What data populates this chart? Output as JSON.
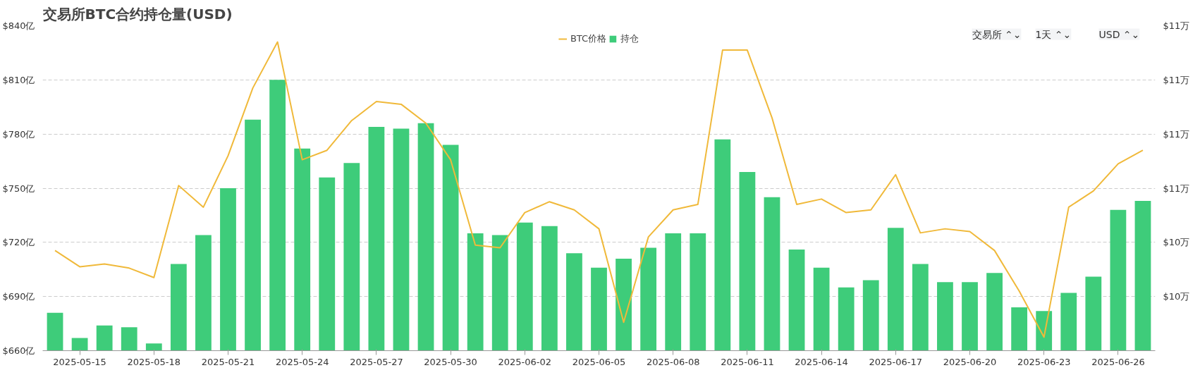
{
  "chart_data": {
    "type": "bar",
    "title": "交易所BTC合约持仓量(USD)",
    "annotations": [
      "交易所 ⌃⌄",
      "1天 ⌃⌄",
      "USD ⌃⌄"
    ],
    "x": [
      "2025-05-14",
      "2025-05-15",
      "2025-05-16",
      "2025-05-17",
      "2025-05-18",
      "2025-05-19",
      "2025-05-20",
      "2025-05-21",
      "2025-05-22",
      "2025-05-23",
      "2025-05-24",
      "2025-05-25",
      "2025-05-26",
      "2025-05-27",
      "2025-05-28",
      "2025-05-29",
      "2025-05-30",
      "2025-05-31",
      "2025-06-01",
      "2025-06-02",
      "2025-06-03",
      "2025-06-04",
      "2025-06-05",
      "2025-06-06",
      "2025-06-07",
      "2025-06-08",
      "2025-06-09",
      "2025-06-10",
      "2025-06-11",
      "2025-06-12",
      "2025-06-13",
      "2025-06-14",
      "2025-06-15",
      "2025-06-16",
      "2025-06-17",
      "2025-06-18",
      "2025-06-19",
      "2025-06-20",
      "2025-06-21",
      "2025-06-22",
      "2025-06-23",
      "2025-06-24",
      "2025-06-25",
      "2025-06-26",
      "2025-06-27"
    ],
    "series": [
      {
        "name": "BTC价格",
        "type": "line",
        "axis": "y2",
        "color": "#f0b93a",
        "values": [
          10.37,
          10.31,
          10.32,
          10.305,
          10.27,
          10.61,
          10.53,
          10.72,
          10.97,
          11.14,
          10.705,
          10.74,
          10.85,
          10.92,
          10.91,
          10.84,
          10.705,
          10.39,
          10.38,
          10.51,
          10.55,
          10.52,
          10.45,
          10.105,
          10.42,
          10.52,
          10.54,
          11.11,
          11.11,
          10.86,
          10.54,
          10.56,
          10.51,
          10.52,
          10.65,
          10.435,
          10.45,
          10.44,
          10.37,
          10.22,
          10.05,
          10.53,
          10.59,
          10.69,
          10.74
        ]
      },
      {
        "name": "持仓",
        "color": "#3ecc7a",
        "values": [
          681,
          667,
          674,
          673,
          664,
          708,
          724,
          750,
          788,
          810,
          772,
          756,
          764,
          784,
          783,
          786,
          774,
          725,
          724,
          731,
          729,
          714,
          706,
          711,
          717,
          725,
          725,
          777,
          759,
          745,
          716,
          706,
          695,
          699,
          728,
          708,
          698,
          698,
          703,
          684,
          682,
          692,
          701,
          738,
          743
        ]
      }
    ],
    "xlim": [
      "2025-05-13T12:00",
      "2025-06-27T12:00"
    ],
    "xticks": [
      {
        "value": "2025-05-15",
        "label": "2025-05-15"
      },
      {
        "value": "2025-05-18",
        "label": "2025-05-18"
      },
      {
        "value": "2025-05-21",
        "label": "2025-05-21"
      },
      {
        "value": "2025-05-24",
        "label": "2025-05-24"
      },
      {
        "value": "2025-05-27",
        "label": "2025-05-27"
      },
      {
        "value": "2025-05-30",
        "label": "2025-05-30"
      },
      {
        "value": "2025-06-02",
        "label": "2025-06-02"
      },
      {
        "value": "2025-06-05",
        "label": "2025-06-05"
      },
      {
        "value": "2025-06-08",
        "label": "2025-06-08"
      },
      {
        "value": "2025-06-11",
        "label": "2025-06-11"
      },
      {
        "value": "2025-06-14",
        "label": "2025-06-14"
      },
      {
        "value": "2025-06-17",
        "label": "2025-06-17"
      },
      {
        "value": "2025-06-20",
        "label": "2025-06-20"
      },
      {
        "value": "2025-06-23",
        "label": "2025-06-23"
      },
      {
        "value": "2025-06-26",
        "label": "2025-06-26"
      }
    ],
    "ylim": [
      660,
      840
    ],
    "yticks": [
      {
        "value": 660,
        "label": "$660亿"
      },
      {
        "value": 690,
        "label": "$690亿"
      },
      {
        "value": 720,
        "label": "$720亿"
      },
      {
        "value": 750,
        "label": "$750亿"
      },
      {
        "value": 780,
        "label": "$780亿"
      },
      {
        "value": 810,
        "label": "$810亿"
      },
      {
        "value": 840,
        "label": "$840亿"
      }
    ],
    "y2lim": [
      10.0,
      11.2
    ],
    "y2ticks": [
      {
        "value": 10.2,
        "label": "$10万"
      },
      {
        "value": 10.4,
        "label": "$10万"
      },
      {
        "value": 10.6,
        "label": "$11万"
      },
      {
        "value": 10.8,
        "label": "$11万"
      },
      {
        "value": 11.0,
        "label": "$11万"
      },
      {
        "value": 11.2,
        "label": "$11万"
      }
    ],
    "grid": "y",
    "legend": "top"
  }
}
